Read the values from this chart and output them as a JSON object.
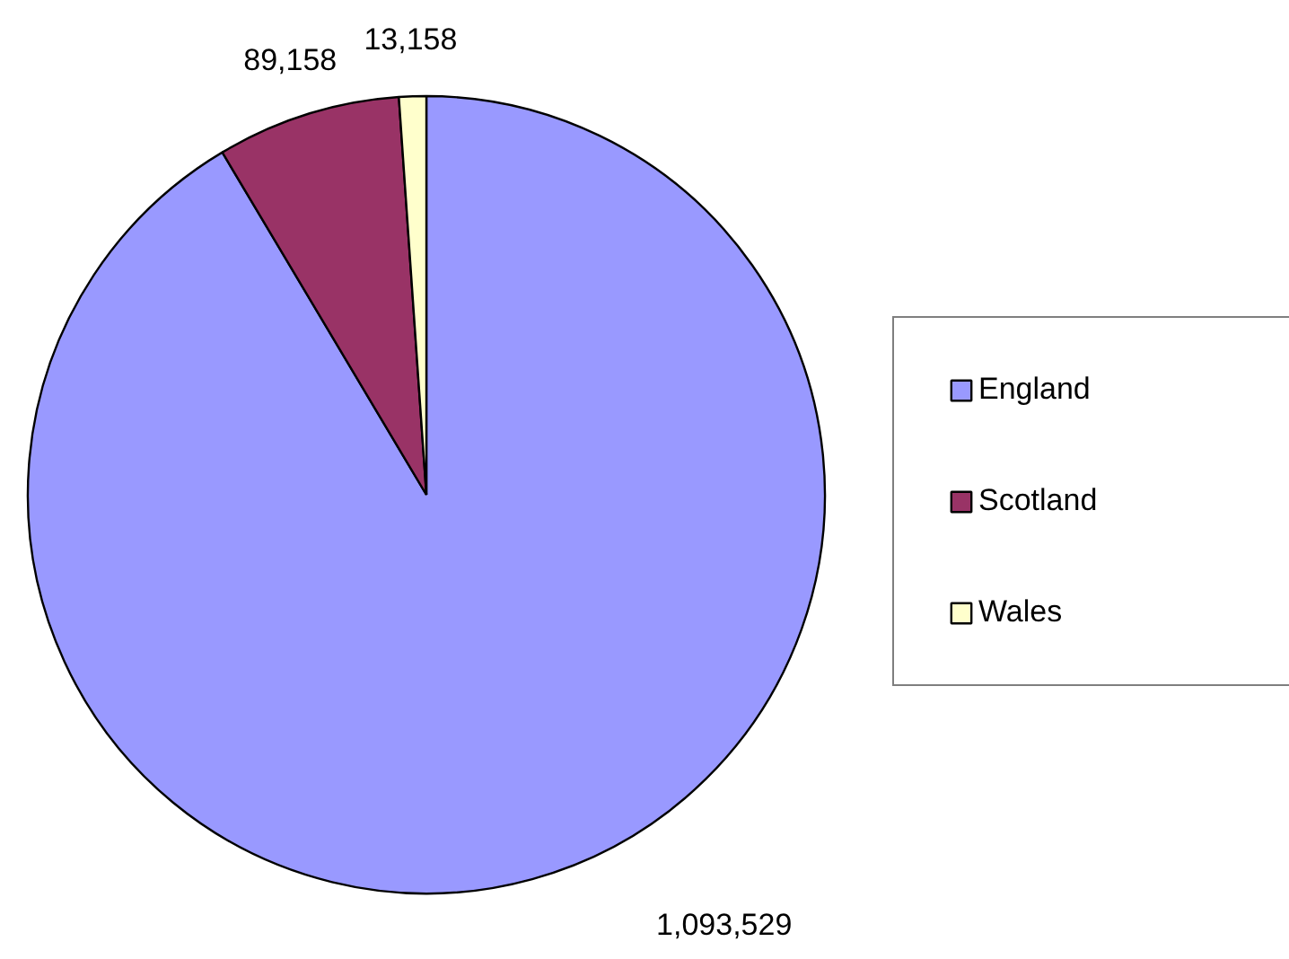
{
  "chart_data": {
    "type": "pie",
    "categories": [
      "England",
      "Scotland",
      "Wales"
    ],
    "values": [
      1093529,
      89158,
      13158
    ],
    "colors": [
      "#9999ff",
      "#993366",
      "#ffffcc"
    ],
    "data_labels": true,
    "value_labels": [
      "1,093,529",
      "89,158",
      "13,158"
    ],
    "legend": "right"
  }
}
